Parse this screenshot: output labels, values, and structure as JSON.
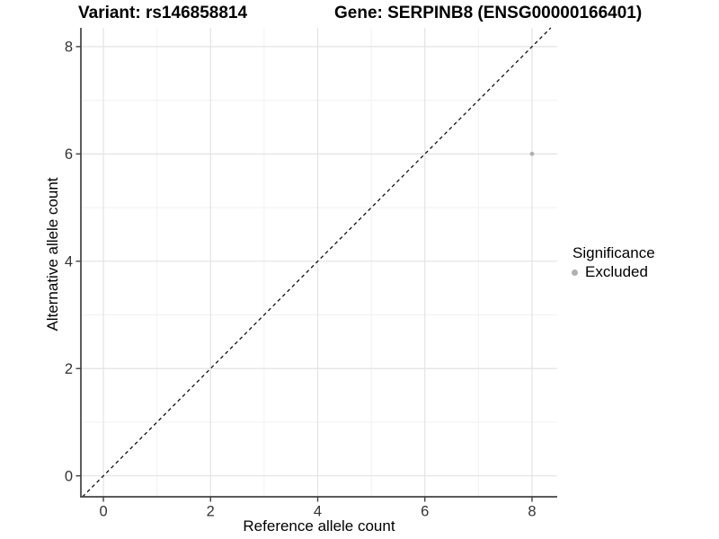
{
  "colors": {
    "background": "#ffffff",
    "grid_major": "#e3e3e3",
    "grid_minor": "#f1f1f1",
    "axis_line": "#424242",
    "tick_mark": "#424242",
    "tick_label": "#333333",
    "reference_line": "#111111",
    "point": "#b0b0b0",
    "title_text": "#000000"
  },
  "chart_data": {
    "type": "scatter",
    "title_variant": "Variant: rs146858814",
    "title_gene": "Gene: SERPINB8 (ENSG00000166401)",
    "xlabel": "Reference allele count",
    "ylabel": "Alternative allele count",
    "xticks": [
      "0",
      "2",
      "4",
      "6",
      "8"
    ],
    "yticks": [
      "0",
      "2",
      "4",
      "6",
      "8"
    ],
    "xtick_values": [
      0,
      2,
      4,
      6,
      8
    ],
    "ytick_values": [
      0,
      2,
      4,
      6,
      8
    ],
    "xlim": [
      -0.42,
      8.47
    ],
    "ylim": [
      -0.39,
      8.35
    ],
    "grid": "major+minor",
    "reference_line": {
      "kind": "identity",
      "slope": 1,
      "intercept": 0,
      "style": "dashed"
    },
    "series": [
      {
        "name": "Excluded",
        "color": "#b0b0b0",
        "points": [
          {
            "x": 8,
            "y": 6
          }
        ]
      }
    ],
    "legend": {
      "title": "Significance",
      "position": "right",
      "items": [
        {
          "label": "Excluded",
          "color": "#b0b0b0",
          "marker": "dot"
        }
      ]
    }
  }
}
